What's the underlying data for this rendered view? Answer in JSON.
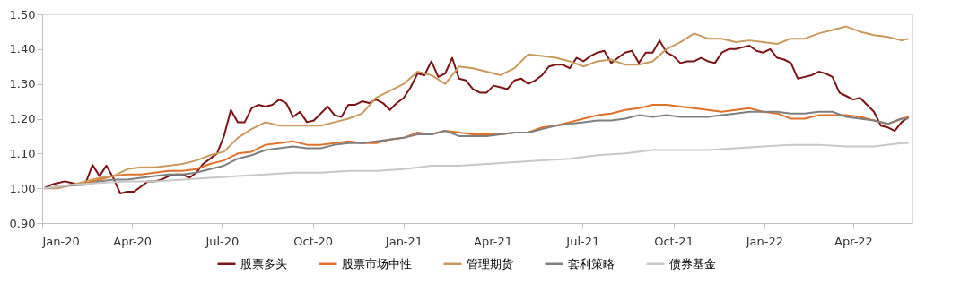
{
  "chart_data": {
    "type": "line",
    "grid": false,
    "legend": "bottom",
    "marker": "none",
    "line_style": "solid",
    "xlim": [
      "2020-01-01",
      "2022-05-31"
    ],
    "xticks": [
      {
        "value": "2020-01-01",
        "label": "Jan-20"
      },
      {
        "value": "2020-04-01",
        "label": "Apr-20"
      },
      {
        "value": "2020-07-01",
        "label": "Jul-20"
      },
      {
        "value": "2020-10-01",
        "label": "Oct-20"
      },
      {
        "value": "2021-01-01",
        "label": "Jan-21"
      },
      {
        "value": "2021-04-01",
        "label": "Apr-21"
      },
      {
        "value": "2021-07-01",
        "label": "Jul-21"
      },
      {
        "value": "2021-10-01",
        "label": "Oct-21"
      },
      {
        "value": "2022-01-01",
        "label": "Jan-22"
      },
      {
        "value": "2022-04-01",
        "label": "Apr-22"
      }
    ],
    "ylim": [
      0.9,
      1.5
    ],
    "yticks": [
      {
        "value": 0.9,
        "label": "0.90"
      },
      {
        "value": 1.0,
        "label": "1.00"
      },
      {
        "value": 1.1,
        "label": "1.10"
      },
      {
        "value": 1.2,
        "label": "1.20"
      },
      {
        "value": 1.3,
        "label": "1.30"
      },
      {
        "value": 1.4,
        "label": "1.40"
      },
      {
        "value": 1.5,
        "label": "1.50"
      }
    ],
    "series": [
      {
        "name": "股票多头",
        "color": "#7b1416",
        "x": [
          "2020-01-03",
          "2020-01-10",
          "2020-01-17",
          "2020-01-24",
          "2020-01-31",
          "2020-02-07",
          "2020-02-14",
          "2020-02-21",
          "2020-02-28",
          "2020-03-06",
          "2020-03-13",
          "2020-03-20",
          "2020-03-27",
          "2020-04-03",
          "2020-04-10",
          "2020-04-17",
          "2020-04-24",
          "2020-05-01",
          "2020-05-08",
          "2020-05-15",
          "2020-05-22",
          "2020-05-29",
          "2020-06-05",
          "2020-06-12",
          "2020-06-19",
          "2020-06-26",
          "2020-07-03",
          "2020-07-10",
          "2020-07-17",
          "2020-07-24",
          "2020-07-31",
          "2020-08-07",
          "2020-08-14",
          "2020-08-21",
          "2020-08-28",
          "2020-09-04",
          "2020-09-11",
          "2020-09-18",
          "2020-09-25",
          "2020-10-02",
          "2020-10-09",
          "2020-10-16",
          "2020-10-23",
          "2020-10-30",
          "2020-11-06",
          "2020-11-13",
          "2020-11-20",
          "2020-11-27",
          "2020-12-04",
          "2020-12-11",
          "2020-12-18",
          "2020-12-25",
          "2021-01-01",
          "2021-01-08",
          "2021-01-15",
          "2021-01-22",
          "2021-01-29",
          "2021-02-05",
          "2021-02-12",
          "2021-02-19",
          "2021-02-26",
          "2021-03-05",
          "2021-03-12",
          "2021-03-19",
          "2021-03-26",
          "2021-04-02",
          "2021-04-09",
          "2021-04-16",
          "2021-04-23",
          "2021-04-30",
          "2021-05-07",
          "2021-05-14",
          "2021-05-21",
          "2021-05-28",
          "2021-06-04",
          "2021-06-11",
          "2021-06-18",
          "2021-06-25",
          "2021-07-02",
          "2021-07-09",
          "2021-07-16",
          "2021-07-23",
          "2021-07-30",
          "2021-08-06",
          "2021-08-13",
          "2021-08-20",
          "2021-08-27",
          "2021-09-03",
          "2021-09-10",
          "2021-09-17",
          "2021-09-24",
          "2021-10-01",
          "2021-10-08",
          "2021-10-15",
          "2021-10-22",
          "2021-10-29",
          "2021-11-05",
          "2021-11-12",
          "2021-11-19",
          "2021-11-26",
          "2021-12-03",
          "2021-12-10",
          "2021-12-17",
          "2021-12-24",
          "2021-12-31",
          "2022-01-07",
          "2022-01-14",
          "2022-01-21",
          "2022-01-28",
          "2022-02-04",
          "2022-02-11",
          "2022-02-18",
          "2022-02-25",
          "2022-03-04",
          "2022-03-11",
          "2022-03-18",
          "2022-03-25",
          "2022-04-01",
          "2022-04-08",
          "2022-04-15",
          "2022-04-22",
          "2022-04-29",
          "2022-05-06",
          "2022-05-13",
          "2022-05-20",
          "2022-05-27"
        ],
        "values": [
          1.0,
          1.01,
          1.015,
          1.02,
          1.015,
          1.012,
          1.015,
          1.067,
          1.035,
          1.065,
          1.03,
          0.985,
          0.99,
          0.99,
          1.005,
          1.02,
          1.02,
          1.025,
          1.035,
          1.04,
          1.04,
          1.03,
          1.045,
          1.07,
          1.085,
          1.1,
          1.15,
          1.225,
          1.19,
          1.19,
          1.23,
          1.24,
          1.235,
          1.24,
          1.255,
          1.245,
          1.205,
          1.22,
          1.19,
          1.195,
          1.215,
          1.235,
          1.21,
          1.205,
          1.24,
          1.24,
          1.25,
          1.245,
          1.255,
          1.245,
          1.225,
          1.245,
          1.26,
          1.29,
          1.33,
          1.325,
          1.365,
          1.32,
          1.33,
          1.375,
          1.315,
          1.31,
          1.285,
          1.275,
          1.275,
          1.295,
          1.29,
          1.285,
          1.31,
          1.315,
          1.3,
          1.31,
          1.325,
          1.35,
          1.355,
          1.355,
          1.345,
          1.375,
          1.365,
          1.38,
          1.39,
          1.395,
          1.36,
          1.375,
          1.39,
          1.395,
          1.36,
          1.39,
          1.39,
          1.425,
          1.39,
          1.38,
          1.36,
          1.365,
          1.365,
          1.375,
          1.365,
          1.36,
          1.39,
          1.4,
          1.4,
          1.405,
          1.41,
          1.395,
          1.39,
          1.4,
          1.375,
          1.37,
          1.36,
          1.315,
          1.32,
          1.325,
          1.335,
          1.33,
          1.32,
          1.275,
          1.265,
          1.255,
          1.26,
          1.24,
          1.22,
          1.18,
          1.175,
          1.165,
          1.19,
          1.205
        ]
      },
      {
        "name": "股票市场中性",
        "color": "#e0702a",
        "x": [
          "2020-01-03",
          "2020-01-17",
          "2020-01-31",
          "2020-02-14",
          "2020-02-28",
          "2020-03-13",
          "2020-03-27",
          "2020-04-10",
          "2020-04-24",
          "2020-05-08",
          "2020-05-22",
          "2020-06-05",
          "2020-06-19",
          "2020-07-03",
          "2020-07-17",
          "2020-07-31",
          "2020-08-14",
          "2020-08-28",
          "2020-09-11",
          "2020-09-25",
          "2020-10-09",
          "2020-10-23",
          "2020-11-06",
          "2020-11-20",
          "2020-12-04",
          "2020-12-18",
          "2021-01-01",
          "2021-01-15",
          "2021-01-29",
          "2021-02-12",
          "2021-02-26",
          "2021-03-12",
          "2021-03-26",
          "2021-04-09",
          "2021-04-23",
          "2021-05-07",
          "2021-05-21",
          "2021-06-04",
          "2021-06-18",
          "2021-07-02",
          "2021-07-16",
          "2021-07-30",
          "2021-08-13",
          "2021-08-27",
          "2021-09-10",
          "2021-09-24",
          "2021-10-08",
          "2021-10-22",
          "2021-11-05",
          "2021-11-19",
          "2021-12-03",
          "2021-12-17",
          "2021-12-31",
          "2022-01-14",
          "2022-01-28",
          "2022-02-11",
          "2022-02-25",
          "2022-03-11",
          "2022-03-25",
          "2022-04-08",
          "2022-04-22",
          "2022-05-06",
          "2022-05-20",
          "2022-05-27"
        ],
        "values": [
          1.0,
          1.005,
          1.01,
          1.015,
          1.025,
          1.035,
          1.04,
          1.04,
          1.045,
          1.05,
          1.05,
          1.055,
          1.07,
          1.08,
          1.1,
          1.105,
          1.125,
          1.13,
          1.135,
          1.125,
          1.125,
          1.13,
          1.135,
          1.13,
          1.13,
          1.14,
          1.145,
          1.16,
          1.155,
          1.165,
          1.16,
          1.155,
          1.155,
          1.155,
          1.16,
          1.16,
          1.175,
          1.18,
          1.19,
          1.2,
          1.21,
          1.215,
          1.225,
          1.23,
          1.24,
          1.24,
          1.235,
          1.23,
          1.225,
          1.22,
          1.225,
          1.23,
          1.22,
          1.215,
          1.2,
          1.2,
          1.21,
          1.21,
          1.21,
          1.205,
          1.195,
          1.185,
          1.2,
          1.205
        ]
      },
      {
        "name": "管理期货",
        "color": "#c99a5e",
        "x": [
          "2020-01-03",
          "2020-01-17",
          "2020-01-31",
          "2020-02-14",
          "2020-02-28",
          "2020-03-13",
          "2020-03-27",
          "2020-04-10",
          "2020-04-24",
          "2020-05-08",
          "2020-05-22",
          "2020-06-05",
          "2020-06-19",
          "2020-07-03",
          "2020-07-17",
          "2020-07-31",
          "2020-08-14",
          "2020-08-28",
          "2020-09-11",
          "2020-09-25",
          "2020-10-09",
          "2020-10-23",
          "2020-11-06",
          "2020-11-20",
          "2020-12-04",
          "2020-12-18",
          "2021-01-01",
          "2021-01-15",
          "2021-01-29",
          "2021-02-12",
          "2021-02-26",
          "2021-03-12",
          "2021-03-26",
          "2021-04-09",
          "2021-04-23",
          "2021-05-07",
          "2021-05-21",
          "2021-06-04",
          "2021-06-18",
          "2021-07-02",
          "2021-07-16",
          "2021-07-30",
          "2021-08-13",
          "2021-08-27",
          "2021-09-10",
          "2021-09-24",
          "2021-10-08",
          "2021-10-22",
          "2021-11-05",
          "2021-11-19",
          "2021-12-03",
          "2021-12-17",
          "2021-12-31",
          "2022-01-14",
          "2022-01-28",
          "2022-02-11",
          "2022-02-25",
          "2022-03-11",
          "2022-03-25",
          "2022-04-08",
          "2022-04-22",
          "2022-05-06",
          "2022-05-20",
          "2022-05-27"
        ],
        "values": [
          1.0,
          1.0,
          1.01,
          1.02,
          1.03,
          1.035,
          1.055,
          1.06,
          1.06,
          1.065,
          1.07,
          1.08,
          1.095,
          1.105,
          1.145,
          1.17,
          1.19,
          1.18,
          1.18,
          1.18,
          1.18,
          1.19,
          1.2,
          1.215,
          1.26,
          1.28,
          1.3,
          1.335,
          1.325,
          1.3,
          1.35,
          1.345,
          1.335,
          1.325,
          1.345,
          1.385,
          1.38,
          1.375,
          1.365,
          1.35,
          1.365,
          1.37,
          1.355,
          1.355,
          1.365,
          1.4,
          1.42,
          1.445,
          1.43,
          1.43,
          1.42,
          1.425,
          1.42,
          1.415,
          1.43,
          1.43,
          1.445,
          1.455,
          1.465,
          1.45,
          1.44,
          1.435,
          1.425,
          1.43
        ]
      },
      {
        "name": "套利策略",
        "color": "#7f7f7f",
        "x": [
          "2020-01-03",
          "2020-01-17",
          "2020-01-31",
          "2020-02-14",
          "2020-02-28",
          "2020-03-13",
          "2020-03-27",
          "2020-04-10",
          "2020-04-24",
          "2020-05-08",
          "2020-05-22",
          "2020-06-05",
          "2020-06-19",
          "2020-07-03",
          "2020-07-17",
          "2020-07-31",
          "2020-08-14",
          "2020-08-28",
          "2020-09-11",
          "2020-09-25",
          "2020-10-09",
          "2020-10-23",
          "2020-11-06",
          "2020-11-20",
          "2020-12-04",
          "2020-12-18",
          "2021-01-01",
          "2021-01-15",
          "2021-01-29",
          "2021-02-12",
          "2021-02-26",
          "2021-03-12",
          "2021-03-26",
          "2021-04-09",
          "2021-04-23",
          "2021-05-07",
          "2021-05-21",
          "2021-06-04",
          "2021-06-18",
          "2021-07-02",
          "2021-07-16",
          "2021-07-30",
          "2021-08-13",
          "2021-08-27",
          "2021-09-10",
          "2021-09-24",
          "2021-10-08",
          "2021-10-22",
          "2021-11-05",
          "2021-11-19",
          "2021-12-03",
          "2021-12-17",
          "2021-12-31",
          "2022-01-14",
          "2022-01-28",
          "2022-02-11",
          "2022-02-25",
          "2022-03-11",
          "2022-03-25",
          "2022-04-08",
          "2022-04-22",
          "2022-05-06",
          "2022-05-20",
          "2022-05-27"
        ],
        "values": [
          1.0,
          1.005,
          1.008,
          1.01,
          1.02,
          1.025,
          1.025,
          1.03,
          1.035,
          1.04,
          1.04,
          1.045,
          1.055,
          1.065,
          1.085,
          1.095,
          1.11,
          1.115,
          1.12,
          1.115,
          1.115,
          1.125,
          1.13,
          1.13,
          1.135,
          1.14,
          1.145,
          1.155,
          1.155,
          1.165,
          1.15,
          1.15,
          1.15,
          1.155,
          1.16,
          1.16,
          1.17,
          1.18,
          1.185,
          1.19,
          1.195,
          1.195,
          1.2,
          1.21,
          1.205,
          1.21,
          1.205,
          1.205,
          1.205,
          1.21,
          1.215,
          1.22,
          1.22,
          1.22,
          1.215,
          1.215,
          1.22,
          1.22,
          1.205,
          1.2,
          1.195,
          1.185,
          1.2,
          1.2
        ]
      },
      {
        "name": "债券基金",
        "color": "#c8c8c8",
        "x": [
          "2020-01-03",
          "2020-01-31",
          "2020-02-28",
          "2020-03-27",
          "2020-04-24",
          "2020-05-22",
          "2020-06-19",
          "2020-07-17",
          "2020-08-14",
          "2020-09-11",
          "2020-10-09",
          "2020-11-06",
          "2020-12-04",
          "2021-01-01",
          "2021-01-29",
          "2021-02-26",
          "2021-03-26",
          "2021-04-23",
          "2021-05-21",
          "2021-06-18",
          "2021-07-16",
          "2021-08-13",
          "2021-09-10",
          "2021-10-08",
          "2021-11-05",
          "2021-12-03",
          "2021-12-31",
          "2022-01-28",
          "2022-02-25",
          "2022-03-25",
          "2022-04-22",
          "2022-05-20",
          "2022-05-27"
        ],
        "values": [
          1.0,
          1.01,
          1.015,
          1.02,
          1.02,
          1.025,
          1.03,
          1.035,
          1.04,
          1.045,
          1.045,
          1.05,
          1.05,
          1.055,
          1.065,
          1.065,
          1.07,
          1.075,
          1.08,
          1.085,
          1.095,
          1.1,
          1.11,
          1.11,
          1.11,
          1.115,
          1.12,
          1.125,
          1.125,
          1.12,
          1.12,
          1.13,
          1.13
        ]
      }
    ]
  }
}
